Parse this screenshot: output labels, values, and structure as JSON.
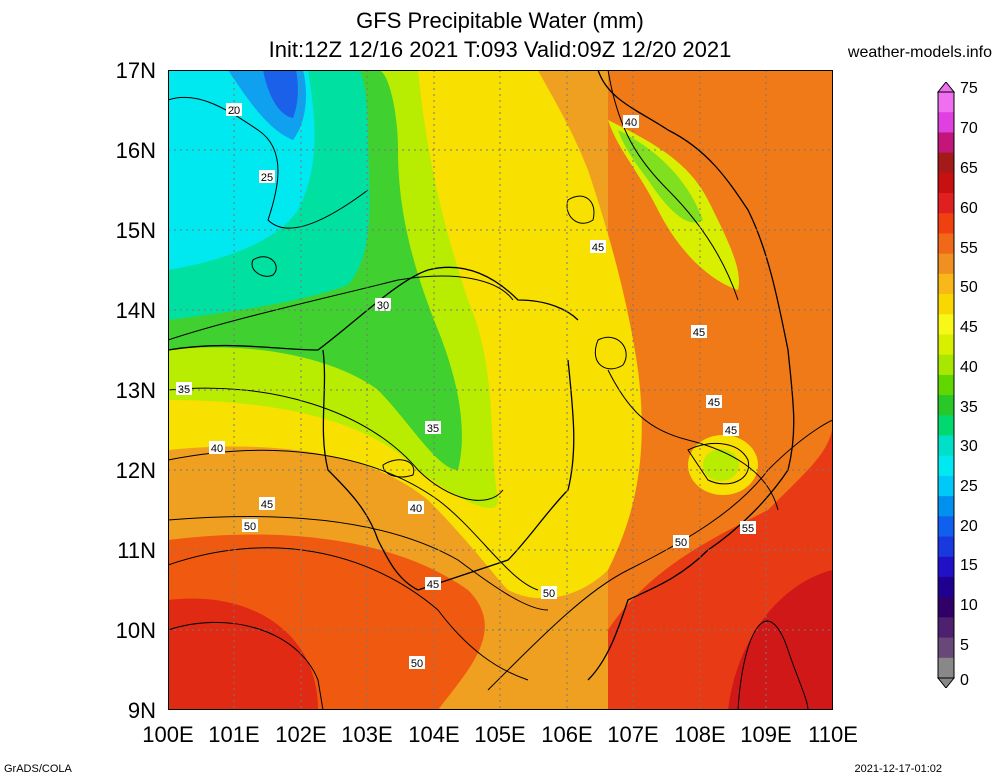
{
  "header": {
    "title": "GFS Precipitable Water (mm)",
    "subtitle": "Init:12Z 12/16 2021 T:093 Valid:09Z 12/20 2021",
    "site": "weather-models.info"
  },
  "axes": {
    "lat_labels": [
      "17N",
      "16N",
      "15N",
      "14N",
      "13N",
      "12N",
      "11N",
      "10N",
      "9N"
    ],
    "lon_labels": [
      "100E",
      "101E",
      "102E",
      "103E",
      "104E",
      "105E",
      "106E",
      "107E",
      "108E",
      "109E",
      "110E"
    ]
  },
  "contour_labels": [
    "20",
    "25",
    "30",
    "35",
    "35",
    "40",
    "40",
    "40",
    "45",
    "45",
    "45",
    "45",
    "45",
    "45",
    "50",
    "50",
    "50",
    "50",
    "55"
  ],
  "colorbar": {
    "labels": [
      "75",
      "70",
      "65",
      "60",
      "55",
      "50",
      "45",
      "40",
      "35",
      "30",
      "25",
      "20",
      "15",
      "10",
      "5",
      "0"
    ],
    "colors": [
      "#f06ef0",
      "#e040e0",
      "#c2167a",
      "#a41a1a",
      "#c81010",
      "#e02020",
      "#f04010",
      "#f06818",
      "#f09020",
      "#f8b818",
      "#f8d800",
      "#f8f818",
      "#d8f000",
      "#a8e800",
      "#60d800",
      "#28c828",
      "#00d870",
      "#00e0c8",
      "#00e8f0",
      "#00c8f8",
      "#0090f0",
      "#1060f0",
      "#1838e0",
      "#2010c8",
      "#200090",
      "#300068",
      "#502070",
      "#684878",
      "#888888"
    ]
  },
  "footer": {
    "left": "GrADS/COLA",
    "right": "2021-12-17-01:02"
  }
}
